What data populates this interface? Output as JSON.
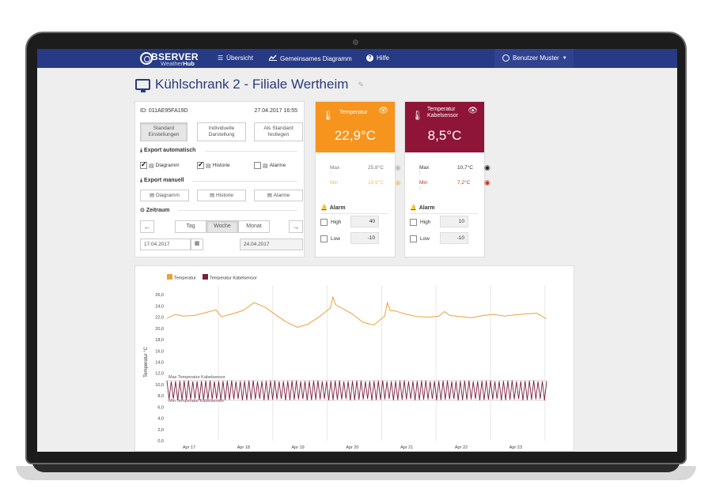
{
  "nav": {
    "brand_title": "BSERVER",
    "brand_sub_a": "Weather",
    "brand_sub_b": "Hub",
    "items": [
      {
        "label": "Übersicht",
        "icon": "menu-icon"
      },
      {
        "label": "Gemeinsames Diagramm",
        "icon": "line-chart-icon"
      },
      {
        "label": "Hilfe",
        "icon": "help-icon"
      }
    ],
    "user": "Benutzer Muster"
  },
  "page": {
    "title": "Kühlschrank 2 - Filiale Wertheim"
  },
  "controls": {
    "id": "ID: 011AE95FA19D",
    "datetime": "27.04.2017 16:55",
    "view_buttons": [
      "Standard Einstellungen",
      "Individuelle Darstellung",
      "Als Standard festlegen"
    ],
    "export_auto_label": "Export automatisch",
    "export_auto_items": [
      {
        "label": "Diagramm",
        "checked": true
      },
      {
        "label": "Historie",
        "checked": true
      },
      {
        "label": "Alarme",
        "checked": false
      }
    ],
    "export_manual_label": "Export manuell",
    "export_manual_items": [
      "Diagramm",
      "Historie",
      "Alarme"
    ],
    "zeitraum_label": "Zeitraum",
    "periods": [
      "Tag",
      "Woche",
      "Monat"
    ],
    "active_period": "Woche",
    "date_from": "17.04.2017",
    "date_to": "24.04.2017"
  },
  "sensors": [
    {
      "name": "Temperatur",
      "value": "22,9°C",
      "color": "#f7941d",
      "max_label": "Max :",
      "max_value": "25,8°C",
      "min_label": "Min :",
      "min_value": "19,9°C",
      "alarm_label": "Alarm",
      "high_label": "High",
      "high_value": "40",
      "low_label": "Low",
      "low_value": "-10"
    },
    {
      "name": "Temperatur Kabelsensor",
      "value": "8,5°C",
      "color": "#8e1538",
      "max_label": "Max :",
      "max_value": "10,7°C",
      "min_label": "Min :",
      "min_value": "7,2°C",
      "alarm_label": "Alarm",
      "high_label": "High",
      "high_value": "10",
      "low_label": "Low",
      "low_value": "-10"
    }
  ],
  "chart_data": {
    "type": "line",
    "legend": [
      "Temperatur",
      "Temperatur Kabelsensor"
    ],
    "ylabel": "Temperatur °C",
    "ylim": [
      0,
      28
    ],
    "y_ticks": [
      "0,0",
      "2,0",
      "4,0",
      "6,0",
      "8,0",
      "10,0",
      "12,0",
      "14,0",
      "16,0",
      "18,0",
      "20,0",
      "22,0",
      "24,0",
      "26,0"
    ],
    "x_ticks": [
      "Apr 17",
      "Apr 18",
      "Apr 19",
      "Apr 20",
      "Apr 21",
      "Apr 22",
      "Apr 23"
    ],
    "annotations": [
      "Max Temperatur Kabelsensor",
      "Min Temperatur Kabelsensor"
    ],
    "series": [
      {
        "name": "Temperatur",
        "color": "#e8a33b",
        "x": [
          0,
          0.15,
          0.3,
          0.5,
          0.7,
          0.9,
          1.0,
          1.2,
          1.4,
          1.6,
          1.8,
          2.0,
          2.2,
          2.4,
          2.6,
          2.8,
          3.0,
          3.05,
          3.1,
          3.2,
          3.4,
          3.6,
          3.8,
          4.0,
          4.05,
          4.1,
          4.2,
          4.4,
          4.6,
          4.8,
          5.0,
          5.1,
          5.2,
          5.4,
          5.6,
          5.8,
          6.0,
          6.2,
          6.4,
          6.6,
          6.8,
          6.97
        ],
        "y": [
          21.8,
          22.5,
          22.2,
          22.3,
          22.8,
          23.3,
          22.1,
          22.6,
          23.2,
          24.6,
          23.8,
          22.4,
          21.1,
          20.2,
          20.8,
          22.1,
          23.6,
          25.6,
          24.2,
          23.7,
          22.6,
          21.1,
          20.6,
          22.2,
          24.6,
          23.2,
          23.1,
          22.5,
          22.1,
          22.0,
          22.2,
          23.0,
          22.3,
          22.1,
          21.9,
          22.3,
          22.5,
          22.2,
          22.4,
          22.6,
          22.7,
          21.7
        ]
      },
      {
        "name": "Temperatur Kabelsensor",
        "color": "#7a1e3d",
        "min": 7.2,
        "max": 10.7,
        "mean": 8.9,
        "oscillation_cycles": 88
      }
    ],
    "reference_lines": [
      {
        "label": "Max Temperatur Kabelsensor",
        "value": 10.7
      },
      {
        "label": "Min Temperatur Kabelsensor",
        "value": 7.2
      }
    ]
  }
}
